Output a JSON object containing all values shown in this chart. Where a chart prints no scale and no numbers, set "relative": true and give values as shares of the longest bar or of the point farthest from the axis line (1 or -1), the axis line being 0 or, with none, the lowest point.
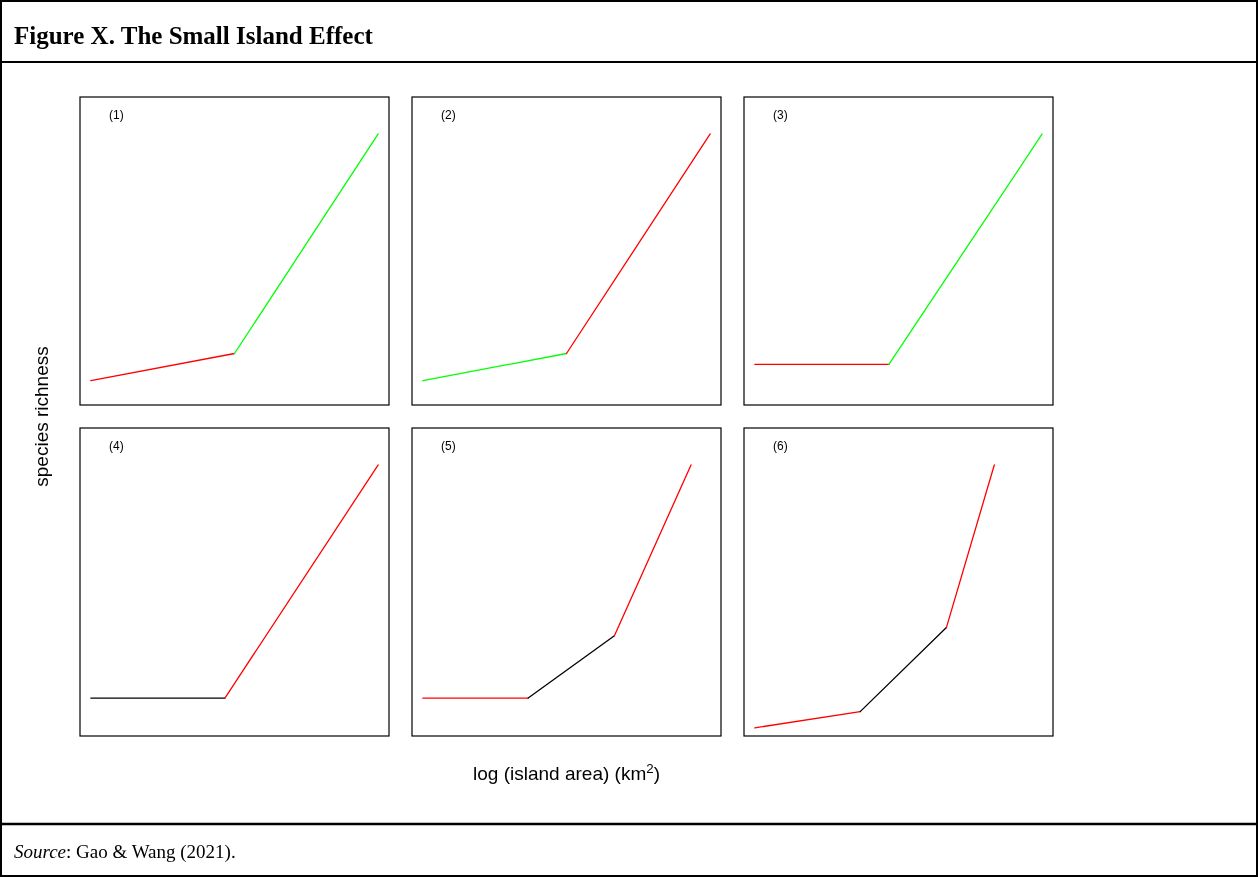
{
  "chart_data": [
    {
      "type": "line",
      "relative": true,
      "title": "Figure X. The Small Island Effect",
      "ylabel": "species richness",
      "annotations": [
        "(1)"
      ],
      "categories": [
        null,
        null,
        null,
        null,
        null,
        null,
        null,
        null,
        null,
        null,
        null,
        null,
        null,
        null,
        null,
        null,
        null,
        null,
        null,
        null,
        null,
        null,
        null,
        null,
        null,
        null,
        null,
        null,
        null,
        null,
        null
      ],
      "series": [
        {
          "color": "#ff0000",
          "values": [
            0.09,
            null,
            null,
            null,
            null,
            null,
            null,
            null,
            null,
            null,
            null,
            null,
            null,
            null,
            null,
            0.19,
            null,
            null,
            null,
            null,
            null,
            null,
            null,
            null,
            null,
            null,
            null,
            null,
            null,
            null,
            null
          ]
        },
        {
          "color": "#00ff00",
          "values": [
            null,
            null,
            null,
            null,
            null,
            null,
            null,
            null,
            null,
            null,
            null,
            null,
            null,
            null,
            null,
            0.19,
            null,
            null,
            null,
            null,
            null,
            null,
            null,
            null,
            null,
            null,
            null,
            null,
            null,
            null,
            1
          ]
        }
      ]
    },
    {
      "type": "line",
      "relative": true,
      "annotations": [
        "(2)"
      ],
      "categories": [
        null,
        null,
        null,
        null,
        null,
        null,
        null,
        null,
        null,
        null,
        null,
        null,
        null,
        null,
        null,
        null,
        null,
        null,
        null,
        null,
        null,
        null,
        null,
        null,
        null,
        null,
        null,
        null,
        null,
        null,
        null
      ],
      "series": [
        {
          "color": "#00ff00",
          "values": [
            0.09,
            null,
            null,
            null,
            null,
            null,
            null,
            null,
            null,
            null,
            null,
            null,
            null,
            null,
            null,
            0.19,
            null,
            null,
            null,
            null,
            null,
            null,
            null,
            null,
            null,
            null,
            null,
            null,
            null,
            null,
            null
          ]
        },
        {
          "color": "#ff0000",
          "values": [
            null,
            null,
            null,
            null,
            null,
            null,
            null,
            null,
            null,
            null,
            null,
            null,
            null,
            null,
            null,
            0.19,
            null,
            null,
            null,
            null,
            null,
            null,
            null,
            null,
            null,
            null,
            null,
            null,
            null,
            null,
            1
          ]
        }
      ]
    },
    {
      "type": "line",
      "relative": true,
      "annotations": [
        "(3)"
      ],
      "categories": [
        null,
        null,
        null,
        null,
        null,
        null,
        null,
        null,
        null,
        null,
        null,
        null,
        null,
        null,
        null,
        null,
        null,
        null,
        null,
        null,
        null,
        null,
        null,
        null,
        null,
        null,
        null,
        null,
        null,
        null,
        null
      ],
      "series": [
        {
          "color": "#ff0000",
          "values": [
            0.15,
            null,
            null,
            null,
            null,
            null,
            null,
            null,
            null,
            null,
            null,
            null,
            null,
            null,
            0.15,
            null,
            null,
            null,
            null,
            null,
            null,
            null,
            null,
            null,
            null,
            null,
            null,
            null,
            null,
            null,
            null
          ]
        },
        {
          "color": "#00ff00",
          "values": [
            null,
            null,
            null,
            null,
            null,
            null,
            null,
            null,
            null,
            null,
            null,
            null,
            null,
            null,
            0.15,
            null,
            null,
            null,
            null,
            null,
            null,
            null,
            null,
            null,
            null,
            null,
            null,
            null,
            null,
            null,
            1
          ]
        }
      ]
    },
    {
      "type": "line",
      "relative": true,
      "annotations": [
        "(4)"
      ],
      "categories": [
        null,
        null,
        null,
        null,
        null,
        null,
        null,
        null,
        null,
        null,
        null,
        null,
        null,
        null,
        null,
        null,
        null,
        null,
        null,
        null,
        null,
        null,
        null,
        null,
        null,
        null,
        null,
        null,
        null,
        null,
        null
      ],
      "series": [
        {
          "color": "#000000",
          "values": [
            0.14,
            null,
            null,
            null,
            null,
            null,
            null,
            null,
            null,
            null,
            null,
            null,
            null,
            null,
            0.14,
            null,
            null,
            null,
            null,
            null,
            null,
            null,
            null,
            null,
            null,
            null,
            null,
            null,
            null,
            null,
            null
          ]
        },
        {
          "color": "#ff0000",
          "values": [
            null,
            null,
            null,
            null,
            null,
            null,
            null,
            null,
            null,
            null,
            null,
            null,
            null,
            null,
            0.14,
            null,
            null,
            null,
            null,
            null,
            null,
            null,
            null,
            null,
            null,
            null,
            null,
            null,
            null,
            null,
            1
          ]
        }
      ]
    },
    {
      "type": "line",
      "relative": true,
      "xlabel": "log (island area) (km$^{2}$)",
      "annotations": [
        "(5)"
      ],
      "categories": [
        null,
        null,
        null,
        null,
        null,
        null,
        null,
        null,
        null,
        null,
        null,
        null,
        null,
        null,
        null,
        null,
        null,
        null,
        null,
        null,
        null,
        null,
        null,
        null,
        null,
        null,
        null,
        null,
        null,
        null,
        null
      ],
      "series": [
        {
          "color": "#ff0000",
          "values": [
            0.14,
            null,
            null,
            null,
            null,
            null,
            null,
            null,
            null,
            null,
            null,
            0.14,
            null,
            null,
            null,
            null,
            null,
            null,
            null,
            null,
            null,
            null,
            null,
            null,
            null,
            null,
            null,
            null,
            null,
            null,
            null
          ]
        },
        {
          "color": "#000000",
          "values": [
            null,
            null,
            null,
            null,
            null,
            null,
            null,
            null,
            null,
            null,
            null,
            0.14,
            null,
            null,
            null,
            null,
            null,
            null,
            null,
            null,
            0.37,
            null,
            null,
            null,
            null,
            null,
            null,
            null,
            null,
            null,
            null
          ]
        },
        {
          "color": "#ff0000",
          "values": [
            null,
            null,
            null,
            null,
            null,
            null,
            null,
            null,
            null,
            null,
            null,
            null,
            null,
            null,
            null,
            null,
            null,
            null,
            null,
            null,
            0.37,
            null,
            null,
            null,
            null,
            null,
            null,
            null,
            1,
            null,
            null
          ]
        }
      ]
    },
    {
      "type": "line",
      "relative": true,
      "annotations": [
        "(6)",
        "Source: Gao & Wang (2021)."
      ],
      "categories": [
        null,
        null,
        null,
        null,
        null,
        null,
        null,
        null,
        null,
        null,
        null,
        null,
        null,
        null,
        null,
        null,
        null,
        null,
        null,
        null,
        null,
        null,
        null,
        null,
        null,
        null,
        null,
        null,
        null,
        null,
        null
      ],
      "series": [
        {
          "color": "#ff0000",
          "values": [
            0.03,
            null,
            null,
            null,
            null,
            null,
            null,
            null,
            null,
            null,
            null,
            0.09,
            null,
            null,
            null,
            null,
            null,
            null,
            null,
            null,
            null,
            null,
            null,
            null,
            null,
            null,
            null,
            null,
            null,
            null,
            null
          ]
        },
        {
          "color": "#000000",
          "values": [
            null,
            null,
            null,
            null,
            null,
            null,
            null,
            null,
            null,
            null,
            null,
            0.09,
            null,
            null,
            null,
            null,
            null,
            null,
            null,
            null,
            0.4,
            null,
            null,
            null,
            null,
            null,
            null,
            null,
            null,
            null,
            null
          ]
        },
        {
          "color": "#ff0000",
          "values": [
            null,
            null,
            null,
            null,
            null,
            null,
            null,
            null,
            null,
            null,
            null,
            null,
            null,
            null,
            null,
            null,
            null,
            null,
            null,
            null,
            0.4,
            null,
            null,
            null,
            null,
            1,
            null,
            null,
            null,
            null,
            null
          ]
        }
      ]
    }
  ]
}
